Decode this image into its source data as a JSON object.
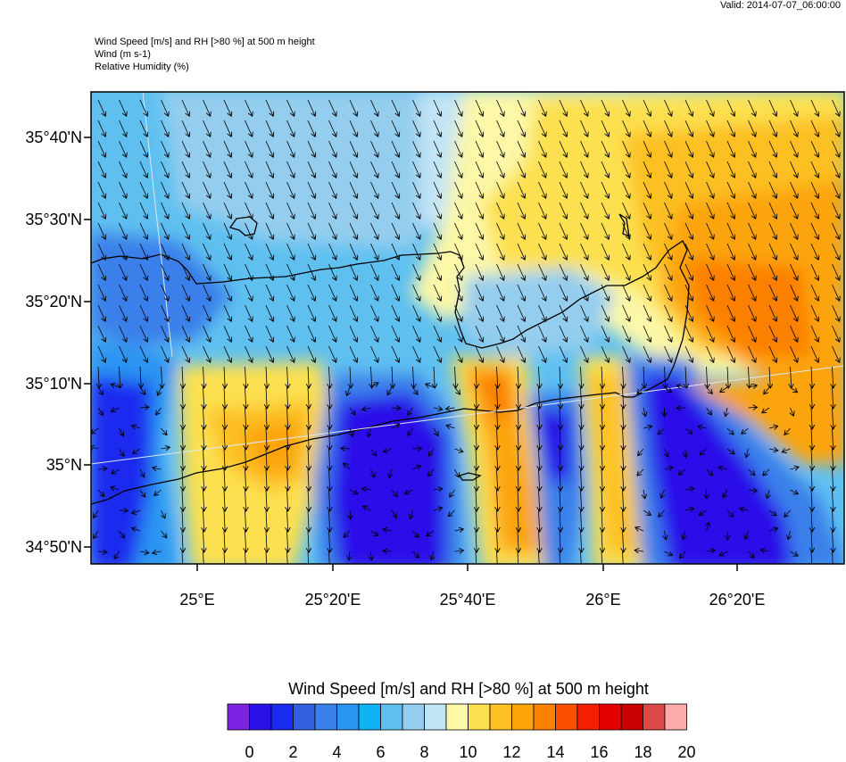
{
  "header": {
    "valid": "Valid: 2014-07-07_06:00:00",
    "line1": "Wind Speed [m/s] and RH [>80 %] at 500 m height",
    "line2": "Wind   (m s-1)",
    "line3": "Relative Humidity   (%)"
  },
  "map": {
    "lat_labels": [
      "35°40'N",
      "35°30'N",
      "35°20'N",
      "35°10'N",
      "35°N",
      "34°50'N"
    ],
    "lon_labels": [
      "25°E",
      "25°20'E",
      "25°40'E",
      "26°E",
      "26°20'E"
    ],
    "wind_direction": "north-north-west"
  },
  "colorbar": {
    "title": "Wind Speed [m/s] and RH [>80 %] at 500 m height",
    "ticks": [
      "0",
      "2",
      "4",
      "6",
      "8",
      "10",
      "12",
      "14",
      "16",
      "18",
      "20"
    ],
    "colors": [
      "#7a22e0",
      "#2a11e8",
      "#1a2aef",
      "#3060e0",
      "#3a80ea",
      "#2a94f2",
      "#10b4f4",
      "#5fc0f0",
      "#94cdee",
      "#c2e4f5",
      "#fcf8a8",
      "#fce050",
      "#fcc024",
      "#fca40a",
      "#fc8000",
      "#fc5000",
      "#f41e00",
      "#e40000",
      "#c80000",
      "#dc4848",
      "#fcaaaa"
    ]
  }
}
